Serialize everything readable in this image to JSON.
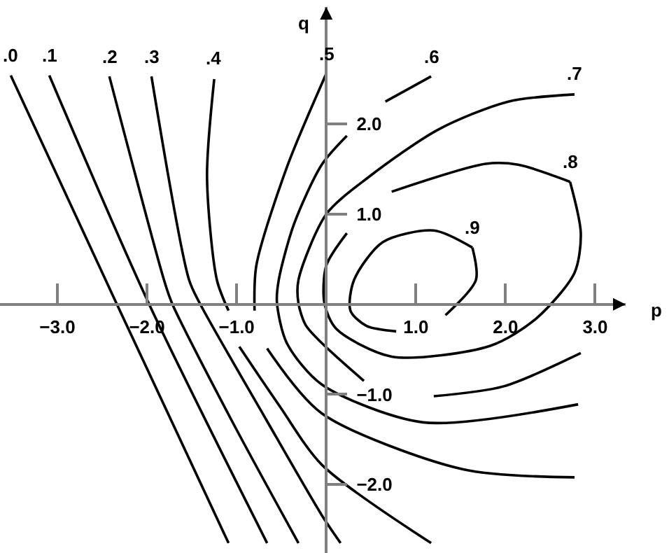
{
  "chart_data": {
    "type": "line",
    "xlabel": "p",
    "ylabel": "q",
    "xlim": [
      -3.64,
      3.34
    ],
    "ylim": [
      -2.76,
      3.3
    ],
    "xticks": [
      {
        "value": -3,
        "label": "−3.0"
      },
      {
        "value": -2,
        "label": "−2.0"
      },
      {
        "value": -1,
        "label": "−1.0"
      },
      {
        "value": 1,
        "label": "1.0"
      },
      {
        "value": 2,
        "label": "2.0"
      },
      {
        "value": 3,
        "label": "3.0"
      }
    ],
    "yticks": [
      {
        "value": 2,
        "label": "2.0"
      },
      {
        "value": 1,
        "label": "1.0"
      },
      {
        "value": -1,
        "label": "−1.0"
      },
      {
        "value": -2,
        "label": "−2.0"
      }
    ],
    "legend": false,
    "marker": "none",
    "line_style": "solid",
    "series": [
      {
        "name": ".0",
        "color": "#000000",
        "x": [
          -3.52,
          -2.34,
          -1.09
        ],
        "values": [
          2.54,
          0.01,
          -2.65
        ]
      },
      {
        "name": ".1",
        "color": "#000000",
        "x": [
          -3.09,
          -1.98,
          -0.66
        ],
        "values": [
          2.54,
          0.01,
          -2.65
        ]
      },
      {
        "name": ".2",
        "color": "#000000",
        "x": [
          -2.42,
          -1.81,
          -1.72,
          -1.06,
          -0.31
        ],
        "values": [
          2.53,
          0.27,
          0.01,
          -1.28,
          -2.65
        ]
      },
      {
        "name": ".3",
        "color": "#000000",
        "x": [
          -1.95,
          -1.53,
          -1.41,
          -0.67,
          -0.05,
          0.16
        ],
        "values": [
          2.53,
          0.27,
          0.01,
          -1.28,
          -2.34,
          -2.65
        ]
      },
      {
        "name": ".4",
        "color": "#000000",
        "x": [
          -1.25,
          -1.33,
          -1.22,
          -1.09,
          -1.03,
          -0.97,
          -0.52,
          -0.05,
          1.17
        ],
        "values": [
          2.5,
          1.41,
          0.27,
          -0.07,
          null,
          -0.47,
          -1.13,
          -1.78,
          -2.65
        ]
      },
      {
        "name": ".5",
        "color": "#000000",
        "x": [
          0,
          -0.44,
          -0.78,
          -0.8,
          -0.73,
          -0.66,
          -0.05,
          1.52,
          2.77
        ],
        "values": [
          2.56,
          1.52,
          0.43,
          -0.07,
          null,
          -0.49,
          -1.21,
          -1.83,
          -1.92
        ]
      },
      {
        "name": ".6",
        "color": "#000000",
        "x": [
          1.17,
          0.66,
          0.45,
          0.23,
          -0.05,
          -0.36,
          -0.53,
          -0.55,
          -0.44,
          -0.05,
          1.08,
          2.81
        ],
        "values": [
          2.53,
          2.25,
          null,
          1.87,
          1.55,
          0.89,
          0.27,
          0.02,
          -0.43,
          -0.89,
          -1.31,
          -1.11
        ]
      },
      {
        "name": ".7",
        "color": "#000000",
        "x": [
          2.77,
          2.03,
          1.25,
          0.47,
          0,
          -0.31,
          -0.31,
          -0.23,
          -0.05,
          0.42,
          0.81,
          1.2,
          1.98,
          2.84
        ],
        "values": [
          2.33,
          2.25,
          1.94,
          1.41,
          1.0,
          0.27,
          0.01,
          -0.23,
          -0.43,
          -0.85,
          null,
          -1.02,
          -0.91,
          -0.54
        ]
      },
      {
        "name": ".8",
        "color": "#000000",
        "x": [
          2.72,
          2.84,
          2.77,
          2.34,
          1.83,
          0.73,
          0.11,
          -0.02,
          0,
          0.23,
          0.48,
          0.73,
          1.78,
          2.14,
          2.72
        ],
        "values": [
          1.36,
          0.79,
          0.35,
          -0.16,
          -0.46,
          -0.58,
          -0.27,
          0.01,
          0.43,
          0.79,
          null,
          1.25,
          1.56,
          1.55,
          1.36
        ]
      },
      {
        "name": ".9",
        "color": "#000000",
        "x": [
          1.63,
          1.67,
          1.33,
          1.05,
          0.78,
          0.45,
          0.27,
          0.31,
          0.63,
          1.2,
          1.63
        ],
        "values": [
          0.63,
          0.27,
          -0.12,
          null,
          -0.3,
          -0.24,
          -0.07,
          0.27,
          0.69,
          0.82,
          0.63
        ]
      }
    ]
  }
}
